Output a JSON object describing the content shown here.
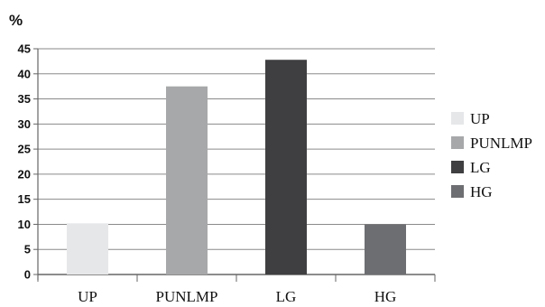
{
  "chart_data": {
    "type": "bar",
    "categories": [
      "UP",
      "PUNLMP",
      "LG",
      "HG"
    ],
    "values": [
      10.2,
      37.5,
      42.8,
      10.0
    ],
    "title": "",
    "xlabel": "",
    "ylabel": "%",
    "ylim": [
      0,
      45
    ],
    "yticks": [
      0,
      5,
      10,
      15,
      20,
      25,
      30,
      35,
      40,
      45
    ],
    "grid": true,
    "legend_position": "right",
    "legend": [
      "UP",
      "PUNLMP",
      "LG",
      "HG"
    ],
    "colors": [
      "#e6e7e9",
      "#a7a8aa",
      "#3f3f41",
      "#6d6e71"
    ]
  }
}
